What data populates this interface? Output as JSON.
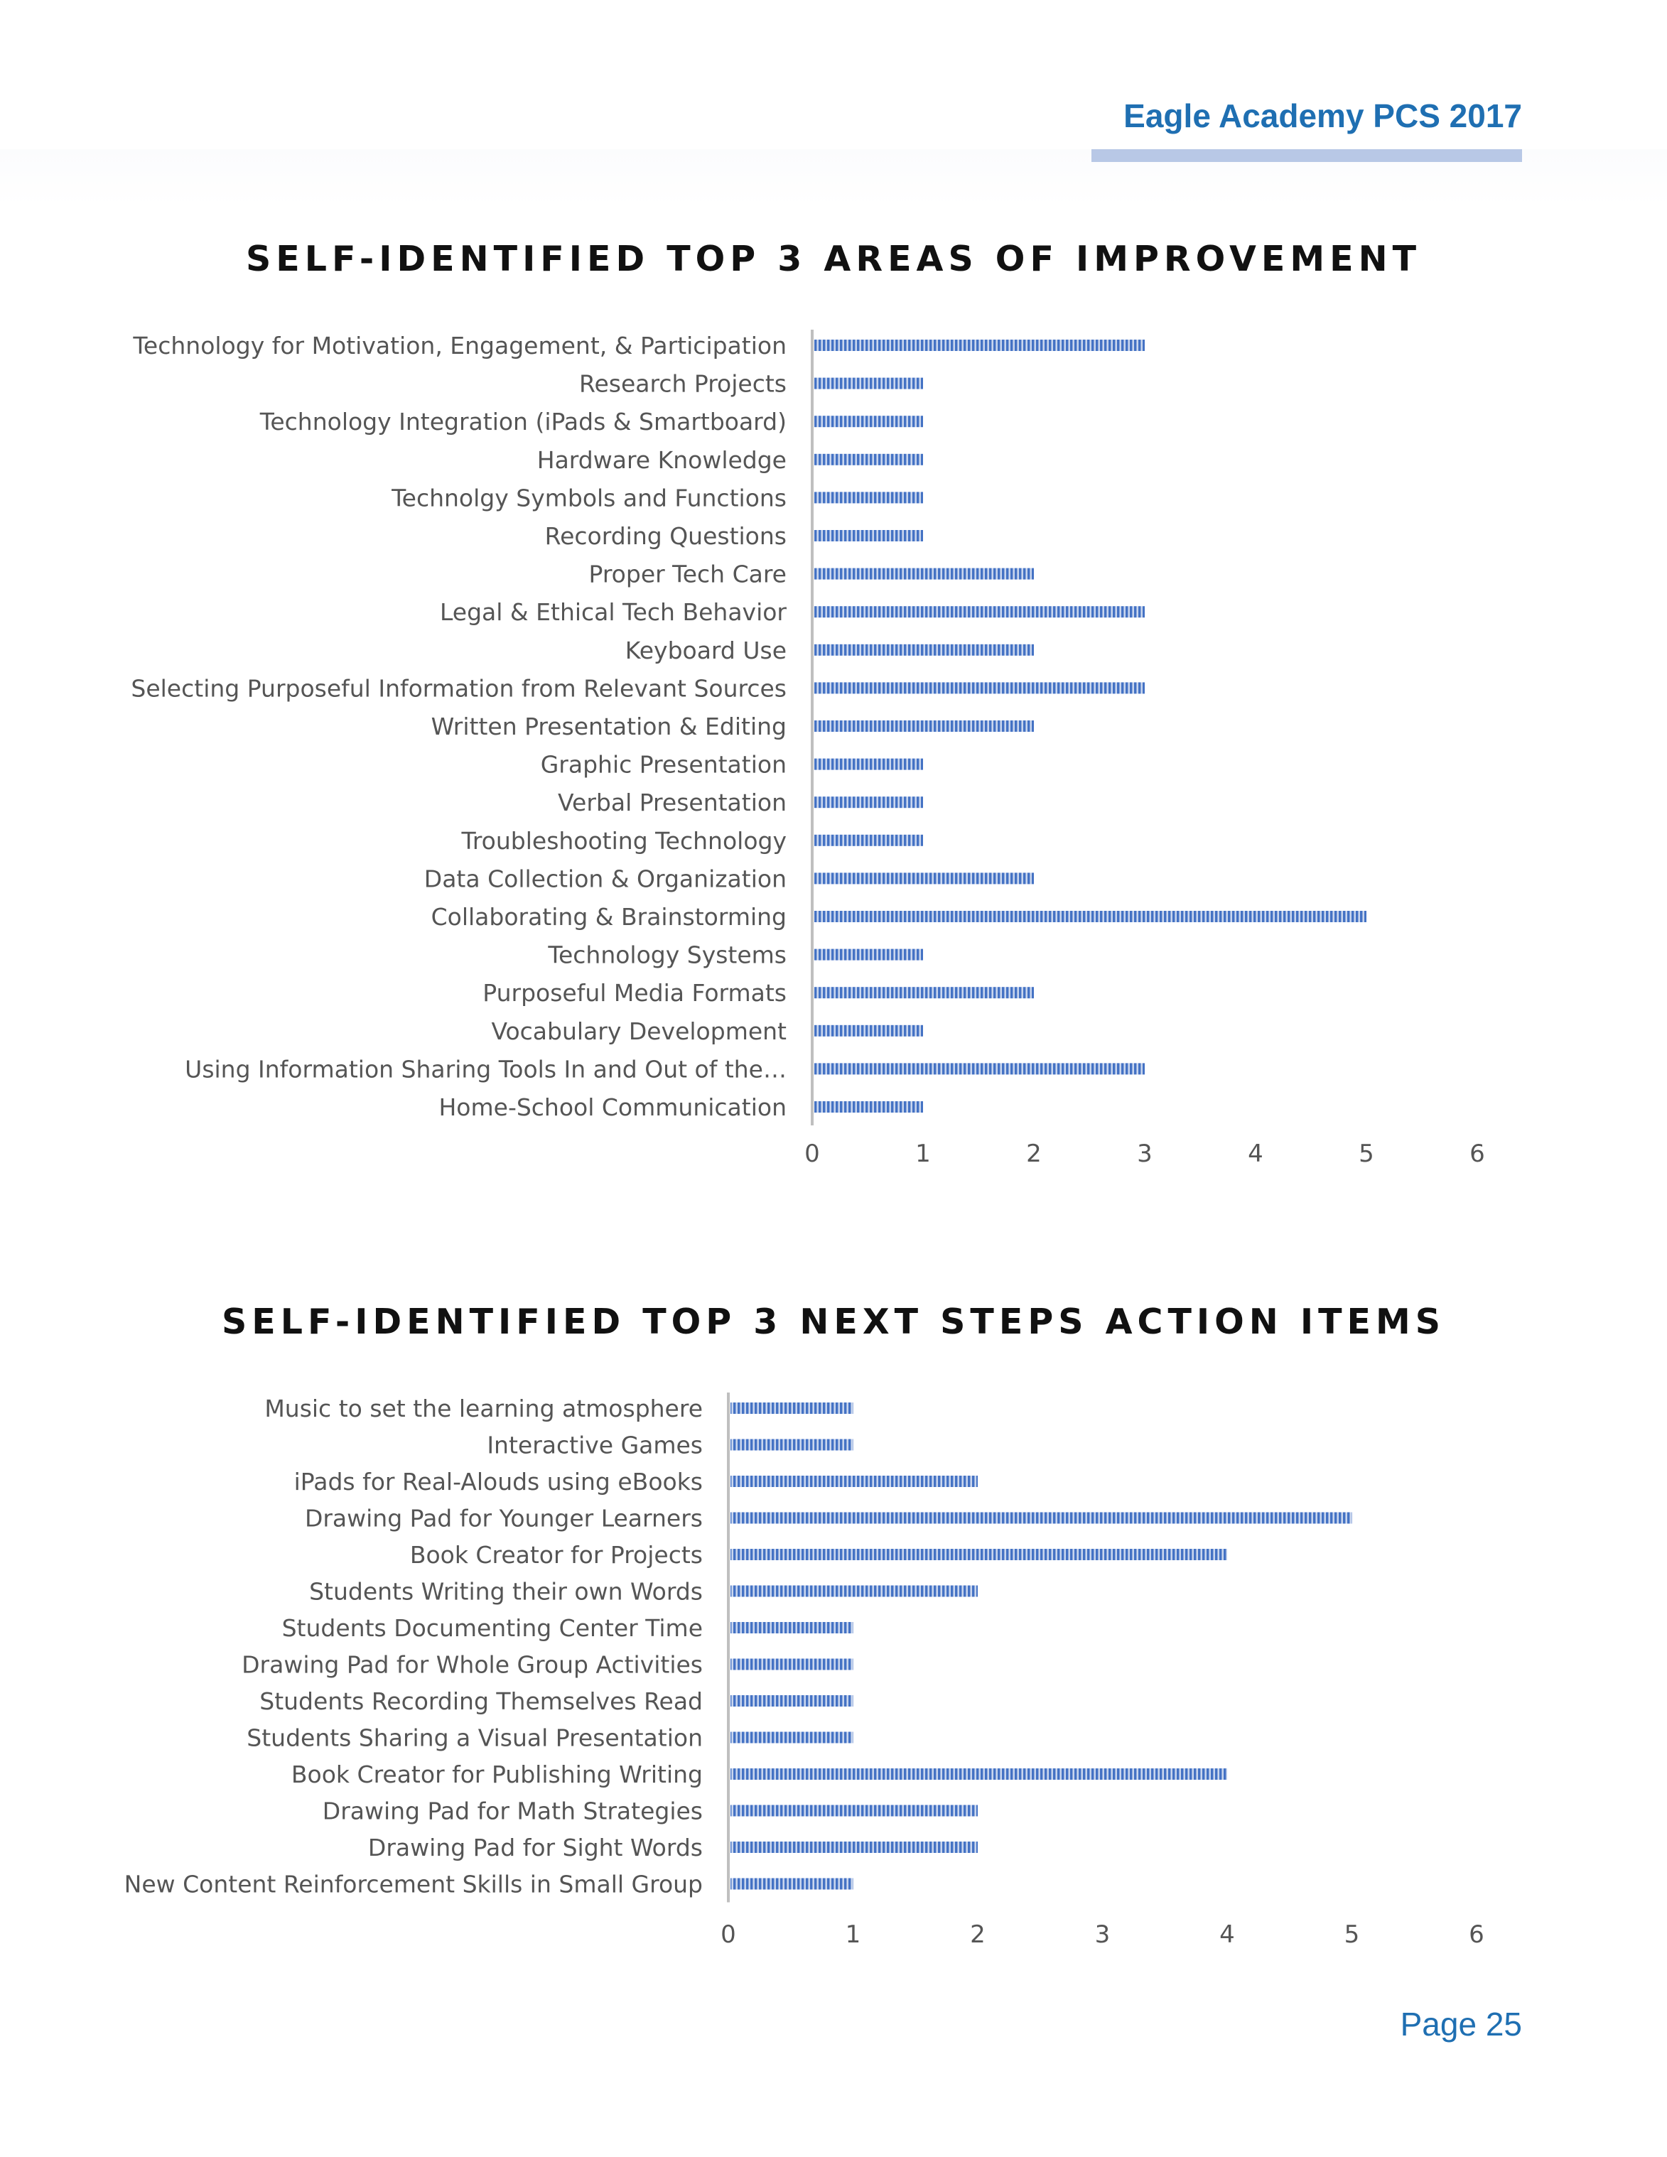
{
  "header": {
    "title": "Eagle Academy PCS 2017",
    "accent_color": "#1f6fb2",
    "rule_color": "#b8c8e6"
  },
  "page_number": "Page 25",
  "chart_data": [
    {
      "type": "bar",
      "orientation": "horizontal",
      "title": "SELF-IDENTIFIED TOP 3 AREAS OF IMPROVEMENT",
      "xlabel": "",
      "ylabel": "",
      "categories": [
        "Technology for Motivation, Engagement, & Participation",
        "Research Projects",
        "Technology Integration (iPads & Smartboard)",
        "Hardware Knowledge",
        "Technolgy Symbols and Functions",
        "Recording Questions",
        "Proper Tech Care",
        "Legal & Ethical Tech Behavior",
        "Keyboard Use",
        "Selecting Purposeful Information from Relevant Sources",
        "Written Presentation & Editing",
        "Graphic Presentation",
        "Verbal Presentation",
        "Troubleshooting Technology",
        "Data Collection & Organization",
        "Collaborating & Brainstorming",
        "Technology Systems",
        "Purposeful Media Formats",
        "Vocabulary Development",
        "Using Information Sharing Tools In and Out of the…",
        "Home-School Communication"
      ],
      "values": [
        3,
        1,
        1,
        1,
        1,
        1,
        2,
        3,
        2,
        3,
        2,
        1,
        1,
        1,
        2,
        5,
        1,
        2,
        1,
        3,
        1
      ],
      "xlim": [
        0,
        6
      ],
      "ticks": [
        "0",
        "1",
        "2",
        "3",
        "4",
        "5",
        "6"
      ],
      "bar_color": "#4472c4",
      "grid": false,
      "legend": "none"
    },
    {
      "type": "bar",
      "orientation": "horizontal",
      "title": "SELF-IDENTIFIED TOP 3 NEXT STEPS ACTION ITEMS",
      "xlabel": "",
      "ylabel": "",
      "categories": [
        "Music to set the learning atmosphere",
        "Interactive Games",
        "iPads for Real-Alouds using eBooks",
        "Drawing Pad for Younger Learners",
        "Book Creator for Projects",
        "Students Writing their own Words",
        "Students Documenting Center Time",
        "Drawing Pad for Whole Group Activities",
        "Students Recording Themselves Read",
        "Students Sharing a Visual Presentation",
        "Book Creator for Publishing Writing",
        "Drawing Pad for Math Strategies",
        "Drawing Pad for Sight Words",
        "New Content Reinforcement Skills in Small Group"
      ],
      "values": [
        1,
        1,
        2,
        5,
        4,
        2,
        1,
        1,
        1,
        1,
        4,
        2,
        2,
        1
      ],
      "xlim": [
        0,
        6
      ],
      "ticks": [
        "0",
        "1",
        "2",
        "3",
        "4",
        "5",
        "6"
      ],
      "bar_color": "#4472c4",
      "grid": false,
      "legend": "none"
    }
  ]
}
